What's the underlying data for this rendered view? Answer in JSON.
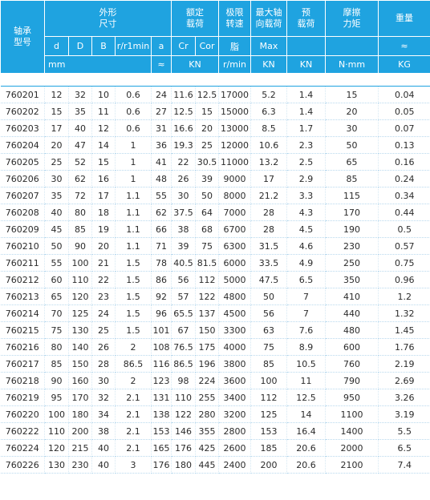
{
  "header": {
    "model": "轴承\n型号",
    "dims": "外形\n尺寸",
    "rated": "额定\n载荷",
    "limit": "极限\n转速",
    "maxaxial": "最大轴\n向载荷",
    "preload": "预\n载荷",
    "friction": "摩擦\n力矩",
    "weight": "重量",
    "sub": [
      "d",
      "D",
      "B",
      "r/r1min",
      "a",
      "Cr",
      "Cor",
      "脂",
      "Max",
      "",
      "",
      "≈"
    ],
    "unit_mm": "mm",
    "unit_approx": "≈",
    "unit_kn1": "KN",
    "unit_rpm": "r/min",
    "unit_kn2": "KN",
    "unit_kn3": "KN",
    "unit_nmm": "N·mm",
    "unit_kg": "KG"
  },
  "rows": [
    [
      "760201",
      "12",
      "32",
      "10",
      "0.6",
      "24",
      "11.6",
      "12.5",
      "17000",
      "5.2",
      "1.4",
      "15",
      "0.04"
    ],
    [
      "760202",
      "15",
      "35",
      "11",
      "0.6",
      "27",
      "12.5",
      "15",
      "15000",
      "6.3",
      "1.4",
      "20",
      "0.05"
    ],
    [
      "760203",
      "17",
      "40",
      "12",
      "0.6",
      "31",
      "16.6",
      "20",
      "13000",
      "8.5",
      "1.7",
      "30",
      "0.07"
    ],
    [
      "760204",
      "20",
      "47",
      "14",
      "1",
      "36",
      "19.3",
      "25",
      "12000",
      "10.6",
      "2.3",
      "50",
      "0.13"
    ],
    [
      "760205",
      "25",
      "52",
      "15",
      "1",
      "41",
      "22",
      "30.5",
      "11000",
      "13.2",
      "2.5",
      "65",
      "0.16"
    ],
    [
      "760206",
      "30",
      "62",
      "16",
      "1",
      "48",
      "26",
      "39",
      "9000",
      "17",
      "2.9",
      "85",
      "0.24"
    ],
    [
      "760207",
      "35",
      "72",
      "17",
      "1.1",
      "55",
      "30",
      "50",
      "8000",
      "21.2",
      "3.3",
      "115",
      "0.34"
    ],
    [
      "760208",
      "40",
      "80",
      "18",
      "1.1",
      "62",
      "37.5",
      "64",
      "7000",
      "28",
      "4.3",
      "170",
      "0.44"
    ],
    [
      "760209",
      "45",
      "85",
      "19",
      "1.1",
      "66",
      "38",
      "68",
      "6700",
      "28",
      "4.5",
      "190",
      "0.5"
    ],
    [
      "760210",
      "50",
      "90",
      "20",
      "1.1",
      "71",
      "39",
      "75",
      "6300",
      "31.5",
      "4.6",
      "230",
      "0.57"
    ],
    [
      "760211",
      "55",
      "100",
      "21",
      "1.5",
      "78",
      "40.5",
      "81.5",
      "6000",
      "33.5",
      "4.9",
      "250",
      "0.75"
    ],
    [
      "760212",
      "60",
      "110",
      "22",
      "1.5",
      "86",
      "56",
      "112",
      "5000",
      "47.5",
      "6.5",
      "350",
      "0.96"
    ],
    [
      "760213",
      "65",
      "120",
      "23",
      "1.5",
      "92",
      "57",
      "122",
      "4800",
      "50",
      "7",
      "410",
      "1.2"
    ],
    [
      "760214",
      "70",
      "125",
      "24",
      "1.5",
      "96",
      "65.5",
      "137",
      "4500",
      "56",
      "7",
      "440",
      "1.32"
    ],
    [
      "760215",
      "75",
      "130",
      "25",
      "1.5",
      "101",
      "67",
      "150",
      "3300",
      "63",
      "7.6",
      "480",
      "1.45"
    ],
    [
      "760216",
      "80",
      "140",
      "26",
      "2",
      "108",
      "76.5",
      "175",
      "4000",
      "75",
      "8.9",
      "600",
      "1.76"
    ],
    [
      "760217",
      "85",
      "150",
      "28",
      "86.5",
      "116",
      "86.5",
      "196",
      "3800",
      "85",
      "10.5",
      "760",
      "2.19"
    ],
    [
      "760218",
      "90",
      "160",
      "30",
      "2",
      "123",
      "98",
      "224",
      "3600",
      "100",
      "11",
      "790",
      "2.69"
    ],
    [
      "760219",
      "95",
      "170",
      "32",
      "2.1",
      "131",
      "110",
      "255",
      "3400",
      "112",
      "12.5",
      "950",
      "3.26"
    ],
    [
      "760220",
      "100",
      "180",
      "34",
      "2.1",
      "138",
      "122",
      "280",
      "3200",
      "125",
      "14",
      "1100",
      "3.19"
    ],
    [
      "760222",
      "110",
      "200",
      "38",
      "2.1",
      "153",
      "146",
      "355",
      "2800",
      "153",
      "16.4",
      "1400",
      "5.5"
    ],
    [
      "760224",
      "120",
      "215",
      "40",
      "2.1",
      "165",
      "176",
      "425",
      "2600",
      "185",
      "20.6",
      "2000",
      "6.5"
    ],
    [
      "760226",
      "130",
      "230",
      "40",
      "3",
      "176",
      "180",
      "445",
      "2400",
      "200",
      "20.6",
      "2100",
      "7.4"
    ]
  ]
}
